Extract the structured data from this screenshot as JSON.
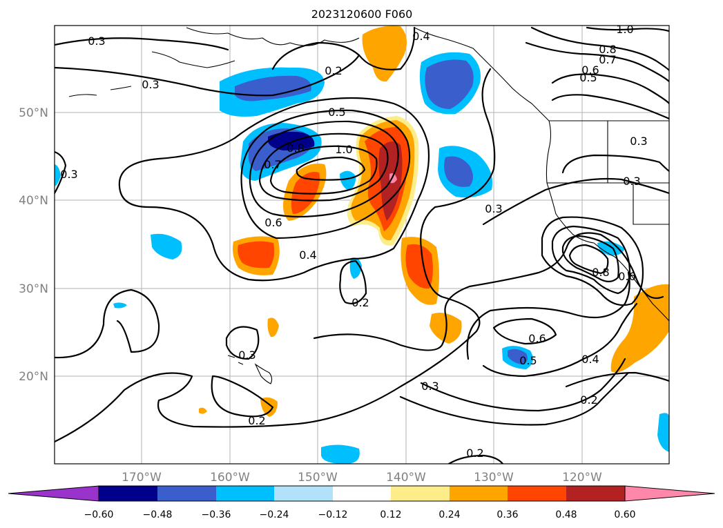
{
  "title": "2023120600 F060",
  "map": {
    "type": "contour-map",
    "lat_labels": [
      "50°N",
      "40°N",
      "30°N",
      "20°N"
    ],
    "lon_labels": [
      "170°W",
      "160°W",
      "150°W",
      "140°W",
      "130°W",
      "120°W"
    ],
    "grid": true
  },
  "contour_labels": [
    "0.3",
    "0.3",
    "0.2",
    "0.4",
    "1.0",
    "0.8",
    "0.7",
    "0.6",
    "0.5",
    "0.5",
    "0.8",
    "0.7",
    "1.0",
    "0.6",
    "0.4",
    "0.3",
    "0.3",
    "0.3",
    "0.3",
    "0.2",
    "0.6",
    "0.5",
    "0.4",
    "0.2",
    "0.3",
    "0.2",
    "0.3",
    "0.2",
    "0.8",
    "0.6"
  ],
  "colorbar": {
    "ticks": [
      "−0.60",
      "−0.48",
      "−0.36",
      "−0.24",
      "−0.12",
      "0.12",
      "0.24",
      "0.36",
      "0.48",
      "0.60"
    ],
    "colors": [
      "#9933cc",
      "#00008b",
      "#3a5fcd",
      "#00bfff",
      "#b2e2fa",
      "#ffffff",
      "#fdec8a",
      "#ffa500",
      "#ff4500",
      "#b22222",
      "#ff88aa"
    ]
  }
}
